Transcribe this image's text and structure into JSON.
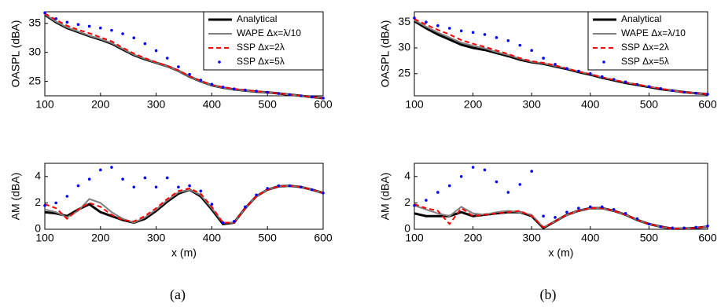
{
  "chart_data": [
    {
      "type": "line",
      "ylabel": "OASPL (dBA)",
      "legend": "upper right",
      "x": [
        100,
        120,
        140,
        160,
        180,
        200,
        220,
        240,
        260,
        280,
        300,
        320,
        340,
        360,
        380,
        400,
        420,
        440,
        460,
        480,
        500,
        520,
        540,
        560,
        580,
        600
      ],
      "xlim": [
        100,
        600
      ],
      "xticks": [
        100,
        200,
        300,
        400,
        500,
        600
      ],
      "ylim": [
        22.5,
        37
      ],
      "yticks": [
        25,
        30,
        35
      ],
      "series": [
        {
          "name": "Analytical",
          "color": "#000000",
          "style": "thick",
          "values": [
            36.5,
            35.2,
            34.2,
            33.5,
            32.8,
            32.2,
            31.5,
            30.5,
            29.5,
            28.8,
            28.2,
            27.6,
            26.8,
            25.8,
            25.0,
            24.3,
            23.9,
            23.6,
            23.4,
            23.2,
            23.1,
            22.9,
            22.7,
            22.5,
            22.3,
            22.1
          ]
        },
        {
          "name": "WAPE Δx=λ/10",
          "color": "#808080",
          "style": "solid",
          "values": [
            36.6,
            35.3,
            34.3,
            33.6,
            32.9,
            32.3,
            31.6,
            30.6,
            29.6,
            28.9,
            28.2,
            27.6,
            26.8,
            25.8,
            25.0,
            24.3,
            23.9,
            23.6,
            23.4,
            23.2,
            23.1,
            22.9,
            22.7,
            22.5,
            22.3,
            22.1
          ]
        },
        {
          "name": "SSP Δx=2λ",
          "color": "#ff0000",
          "style": "dashed",
          "values": [
            36.7,
            35.6,
            34.6,
            33.9,
            33.3,
            32.6,
            31.9,
            30.8,
            29.8,
            29.0,
            28.3,
            27.7,
            26.9,
            25.9,
            25.1,
            24.4,
            24.0,
            23.7,
            23.5,
            23.3,
            23.1,
            22.9,
            22.7,
            22.5,
            22.3,
            22.1
          ]
        },
        {
          "name": "SSP Δx=5λ",
          "color": "#0000ff",
          "style": "dots",
          "values": [
            36.8,
            35.8,
            35.2,
            34.8,
            34.5,
            34.2,
            33.8,
            33.2,
            32.5,
            31.5,
            30.3,
            29.0,
            27.5,
            26.2,
            25.2,
            24.5,
            24.0,
            23.7,
            23.5,
            23.3,
            23.1,
            22.9,
            22.7,
            22.5,
            22.3,
            22.1
          ]
        }
      ]
    },
    {
      "type": "line",
      "ylabel": "OASPL (dBA)",
      "legend": "upper right",
      "x": [
        100,
        120,
        140,
        160,
        180,
        200,
        220,
        240,
        260,
        280,
        300,
        320,
        340,
        360,
        380,
        400,
        420,
        440,
        460,
        480,
        500,
        520,
        540,
        560,
        580,
        600
      ],
      "xlim": [
        100,
        600
      ],
      "xticks": [
        100,
        200,
        300,
        400,
        500,
        600
      ],
      "ylim": [
        20.7,
        37
      ],
      "yticks": [
        25,
        30,
        35
      ],
      "series": [
        {
          "name": "Analytical",
          "color": "#000000",
          "style": "thick",
          "values": [
            35.2,
            33.8,
            32.6,
            31.6,
            30.6,
            30.0,
            29.6,
            29.0,
            28.4,
            27.7,
            27.2,
            26.9,
            26.4,
            25.9,
            25.3,
            24.8,
            24.2,
            23.7,
            23.2,
            22.8,
            22.4,
            22.0,
            21.7,
            21.4,
            21.2,
            21.0
          ]
        },
        {
          "name": "WAPE Δx=λ/10",
          "color": "#808080",
          "style": "solid",
          "values": [
            35.4,
            34.1,
            33.0,
            32.0,
            31.0,
            30.4,
            29.9,
            29.2,
            28.6,
            27.9,
            27.3,
            27.0,
            26.5,
            26.0,
            25.4,
            24.9,
            24.3,
            23.8,
            23.3,
            22.9,
            22.5,
            22.1,
            21.7,
            21.4,
            21.2,
            21.0
          ]
        },
        {
          "name": "SSP Δx=2λ",
          "color": "#ff0000",
          "style": "dashed",
          "values": [
            35.6,
            34.5,
            33.5,
            32.6,
            31.5,
            30.8,
            30.2,
            29.5,
            28.8,
            28.0,
            27.4,
            27.1,
            26.6,
            26.0,
            25.4,
            24.9,
            24.3,
            23.8,
            23.3,
            22.9,
            22.5,
            22.1,
            21.7,
            21.4,
            21.2,
            21.0
          ]
        },
        {
          "name": "SSP Δx=5λ",
          "color": "#0000ff",
          "style": "dots",
          "values": [
            35.8,
            35.0,
            34.3,
            33.8,
            33.3,
            33.0,
            32.6,
            32.0,
            31.4,
            30.5,
            29.5,
            28.0,
            26.8,
            26.0,
            25.5,
            25.0,
            24.4,
            23.9,
            23.4,
            22.9,
            22.5,
            22.1,
            21.7,
            21.4,
            21.2,
            21.0
          ]
        }
      ]
    },
    {
      "type": "line",
      "ylabel": "AM (dBA)",
      "xlabel": "x (m)",
      "x": [
        100,
        120,
        140,
        160,
        180,
        200,
        220,
        240,
        260,
        280,
        300,
        320,
        340,
        360,
        380,
        400,
        420,
        440,
        460,
        480,
        500,
        520,
        540,
        560,
        580,
        600
      ],
      "xlim": [
        100,
        600
      ],
      "xticks": [
        100,
        200,
        300,
        400,
        500,
        600
      ],
      "ylim": [
        0,
        5
      ],
      "yticks": [
        0,
        2,
        4
      ],
      "series": [
        {
          "color": "#000000",
          "style": "thick",
          "values": [
            1.3,
            1.2,
            1.0,
            1.5,
            1.9,
            1.3,
            1.0,
            0.7,
            0.5,
            0.8,
            1.4,
            2.1,
            2.7,
            3.0,
            2.5,
            1.5,
            0.4,
            0.5,
            1.6,
            2.5,
            3.0,
            3.25,
            3.3,
            3.2,
            3.0,
            2.75
          ]
        },
        {
          "color": "#808080",
          "style": "solid",
          "values": [
            1.5,
            1.3,
            0.9,
            1.4,
            2.3,
            2.0,
            1.3,
            0.8,
            0.5,
            0.9,
            1.5,
            2.2,
            2.8,
            3.0,
            2.6,
            1.6,
            0.5,
            0.5,
            1.6,
            2.5,
            3.0,
            3.25,
            3.3,
            3.2,
            3.0,
            2.75
          ]
        },
        {
          "color": "#ff0000",
          "style": "dashed",
          "values": [
            1.9,
            1.6,
            0.8,
            1.5,
            2.0,
            1.7,
            1.1,
            0.7,
            0.6,
            1.0,
            1.6,
            2.3,
            2.9,
            3.1,
            2.7,
            1.7,
            0.5,
            0.5,
            1.6,
            2.5,
            3.0,
            3.25,
            3.3,
            3.2,
            3.0,
            2.75
          ]
        },
        {
          "color": "#0000ff",
          "style": "dots",
          "values": [
            1.8,
            2.0,
            2.5,
            3.3,
            3.8,
            4.5,
            4.7,
            3.8,
            3.2,
            3.9,
            3.2,
            3.9,
            3.2,
            3.3,
            2.9,
            1.9,
            0.5,
            0.6,
            1.7,
            2.6,
            3.1,
            3.3,
            3.3,
            3.2,
            3.0,
            2.75
          ]
        }
      ]
    },
    {
      "type": "line",
      "ylabel": "AM (dBA)",
      "xlabel": "x (m)",
      "x": [
        100,
        120,
        140,
        160,
        180,
        200,
        220,
        240,
        260,
        280,
        300,
        320,
        340,
        360,
        380,
        400,
        420,
        440,
        460,
        480,
        500,
        520,
        540,
        560,
        580,
        600
      ],
      "xlim": [
        100,
        600
      ],
      "xticks": [
        100,
        200,
        300,
        400,
        500,
        600
      ],
      "ylim": [
        0,
        5
      ],
      "yticks": [
        0,
        2,
        4
      ],
      "series": [
        {
          "color": "#000000",
          "style": "thick",
          "values": [
            1.2,
            1.0,
            1.0,
            1.0,
            1.3,
            1.0,
            1.1,
            1.2,
            1.3,
            1.3,
            1.0,
            0.1,
            0.6,
            1.1,
            1.4,
            1.6,
            1.6,
            1.4,
            1.1,
            0.7,
            0.4,
            0.2,
            0.05,
            0.05,
            0.1,
            0.2
          ]
        },
        {
          "color": "#808080",
          "style": "solid",
          "values": [
            1.8,
            1.5,
            1.2,
            1.0,
            1.7,
            1.2,
            1.1,
            1.3,
            1.4,
            1.3,
            1.1,
            0.15,
            0.6,
            1.1,
            1.4,
            1.6,
            1.6,
            1.4,
            1.1,
            0.7,
            0.4,
            0.2,
            0.05,
            0.05,
            0.1,
            0.2
          ]
        },
        {
          "color": "#ff0000",
          "style": "dashed",
          "values": [
            1.9,
            1.6,
            1.4,
            0.4,
            1.6,
            1.0,
            1.1,
            1.2,
            1.3,
            1.4,
            1.0,
            0.15,
            0.6,
            1.1,
            1.4,
            1.6,
            1.6,
            1.4,
            1.1,
            0.7,
            0.4,
            0.2,
            0.05,
            0.05,
            0.1,
            0.2
          ]
        },
        {
          "color": "#0000ff",
          "style": "dots",
          "values": [
            1.8,
            2.2,
            2.8,
            3.3,
            4.0,
            4.7,
            4.5,
            3.6,
            2.8,
            3.4,
            4.4,
            1.0,
            0.9,
            1.3,
            1.6,
            1.7,
            1.7,
            1.5,
            1.2,
            0.8,
            0.4,
            0.2,
            0.1,
            0.1,
            0.15,
            0.25
          ]
        }
      ]
    }
  ],
  "captions": [
    "(a)",
    "(b)"
  ]
}
